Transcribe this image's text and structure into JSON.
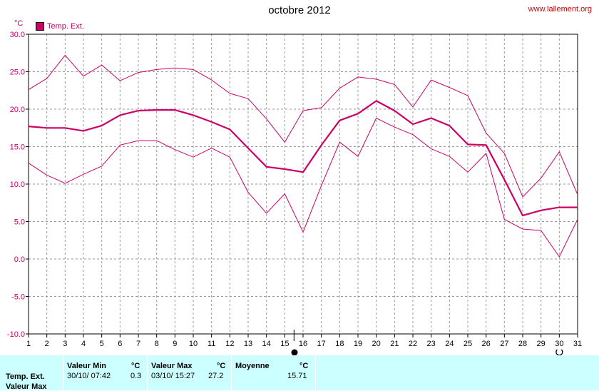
{
  "title": "octobre 2012",
  "site": "www.lallement.org",
  "unit": "°C",
  "legend_label": "Temp. Ext.",
  "stats": {
    "min_header": "Valeur Min",
    "max_header": "Valeur Max",
    "avg_header": "Moyenne",
    "unit": "°C",
    "row_label": "Temp. Ext.",
    "row2_label": "Valeur Max",
    "min_date": "30/10/  07:42",
    "min_value": "0.3",
    "max_date": "03/10/  15:27",
    "max_value": "27.2",
    "avg_value": "15.71"
  },
  "chart_data": {
    "type": "line",
    "title": "octobre 2012",
    "ylabel": "°C",
    "ylim": [
      -10,
      30
    ],
    "yticks": [
      "30.0",
      "25.0",
      "20.0",
      "15.0",
      "10.0",
      "5.0",
      "0.0",
      "-5.0",
      "-10.0"
    ],
    "x": [
      1,
      2,
      3,
      4,
      5,
      6,
      7,
      8,
      9,
      10,
      11,
      12,
      13,
      14,
      15,
      16,
      17,
      18,
      19,
      20,
      21,
      22,
      23,
      24,
      25,
      26,
      27,
      28,
      29,
      30,
      31
    ],
    "grid": true,
    "legend": "top-left",
    "color": "#cc0066",
    "series": [
      {
        "name": "Temp. Ext.",
        "role": "max",
        "values": [
          22.6,
          24.1,
          27.2,
          24.4,
          25.9,
          23.8,
          24.9,
          25.3,
          25.5,
          25.3,
          23.9,
          22.1,
          21.4,
          18.7,
          15.6,
          19.8,
          20.2,
          22.8,
          24.3,
          24.0,
          23.3,
          20.3,
          23.9,
          22.9,
          21.8,
          16.8,
          14.1,
          8.3,
          10.8,
          14.3,
          8.6
        ]
      },
      {
        "name": "Temp. Ext.",
        "role": "mean",
        "values": [
          17.7,
          17.5,
          17.5,
          17.1,
          17.8,
          19.2,
          19.8,
          19.9,
          19.9,
          19.2,
          18.3,
          17.3,
          14.8,
          12.3,
          12.0,
          11.6,
          15.2,
          18.5,
          19.4,
          21.1,
          19.8,
          18.0,
          18.8,
          17.8,
          15.3,
          15.2,
          10.6,
          5.8,
          6.5,
          6.9,
          6.9
        ]
      },
      {
        "name": "Temp. Ext.",
        "role": "min",
        "values": [
          12.8,
          11.2,
          10.1,
          11.3,
          12.4,
          15.2,
          15.8,
          15.8,
          14.6,
          13.6,
          14.8,
          13.6,
          8.9,
          6.1,
          8.7,
          3.6,
          9.8,
          15.6,
          13.7,
          18.8,
          17.6,
          16.6,
          14.7,
          13.7,
          11.6,
          14.1,
          5.3,
          4.0,
          3.8,
          0.3,
          5.3
        ]
      }
    ]
  }
}
